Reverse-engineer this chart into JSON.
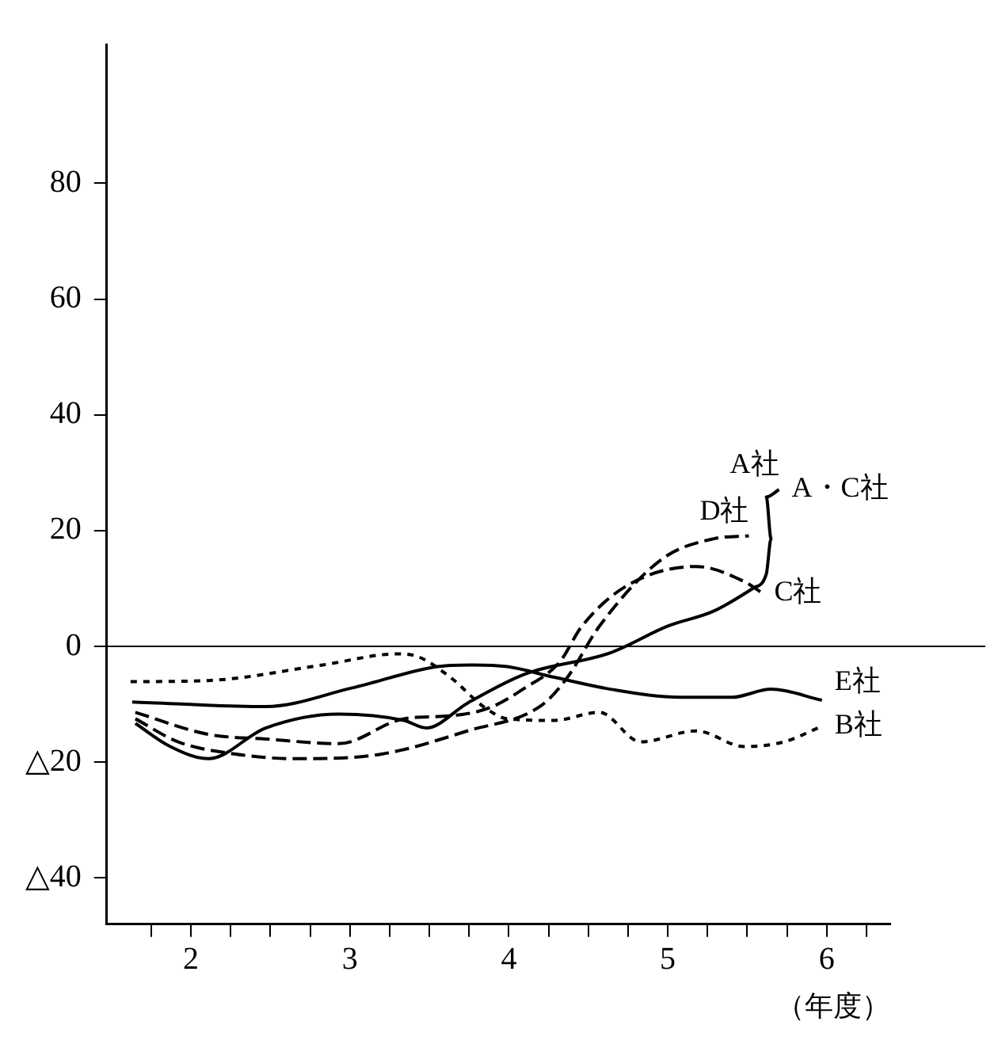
{
  "chart_data": {
    "type": "line",
    "xlabel": "（年度）",
    "legend": false,
    "grid": false,
    "xlim": [
      1.47,
      6.4
    ],
    "xticks": [
      {
        "value": 1.75,
        "label": null
      },
      {
        "value": 2,
        "label": "2"
      },
      {
        "value": 2.25,
        "label": null
      },
      {
        "value": 2.5,
        "label": null
      },
      {
        "value": 2.75,
        "label": null
      },
      {
        "value": 3,
        "label": "3"
      },
      {
        "value": 3.25,
        "label": null
      },
      {
        "value": 3.5,
        "label": null
      },
      {
        "value": 3.75,
        "label": null
      },
      {
        "value": 4,
        "label": "4"
      },
      {
        "value": 4.25,
        "label": null
      },
      {
        "value": 4.5,
        "label": null
      },
      {
        "value": 4.75,
        "label": null
      },
      {
        "value": 5,
        "label": "5"
      },
      {
        "value": 5.25,
        "label": null
      },
      {
        "value": 5.5,
        "label": null
      },
      {
        "value": 5.75,
        "label": null
      },
      {
        "value": 6,
        "label": "6"
      },
      {
        "value": 6.25,
        "label": null
      }
    ],
    "ylim": [
      -48,
      104
    ],
    "yticks": [
      {
        "value": -40,
        "label": "△40"
      },
      {
        "value": -20,
        "label": "△20"
      },
      0,
      20,
      40,
      60,
      80
    ],
    "ref_lines": [
      {
        "axis": "y",
        "value": 0
      }
    ],
    "annotations": [
      {
        "text": "A・C社",
        "x": 5.7,
        "y": 27.1
      }
    ],
    "series": [
      {
        "name": "A社",
        "color": "#000000",
        "line_style": "solid",
        "x": [
          1.65,
          1.87,
          2.11,
          2.47,
          2.93,
          3.34,
          3.48,
          3.74,
          4.1,
          4.64,
          5.0,
          5.29,
          5.54,
          5.62,
          5.65,
          5.62,
          5.7
        ],
        "values": [
          -13.3,
          -17.3,
          -19.4,
          -14.1,
          -11.7,
          -12.8,
          -14.1,
          -9.8,
          -4.8,
          -1.1,
          3.5,
          6.1,
          10.1,
          12.5,
          18.6,
          25.8,
          27.1
        ]
      },
      {
        "name": "B社",
        "color": "#000000",
        "line_style": "dotted",
        "x": [
          1.62,
          2.11,
          2.83,
          3.3,
          3.41,
          3.63,
          3.85,
          3.99,
          4.28,
          4.57,
          4.83,
          5.18,
          5.48,
          5.73,
          5.97
        ],
        "values": [
          -6.1,
          -5.9,
          -3.2,
          -1.3,
          -1.6,
          -5.3,
          -10.6,
          -12.5,
          -12.8,
          -11.4,
          -16.5,
          -14.6,
          -17.3,
          -16.5,
          -13.8
        ]
      },
      {
        "name": "C社",
        "color": "#000000",
        "line_style": "dashed",
        "x": [
          1.65,
          2.11,
          2.47,
          2.93,
          3.34,
          3.63,
          3.88,
          4.1,
          4.32,
          4.46,
          4.75,
          5.18,
          5.48,
          5.59
        ],
        "values": [
          -11.4,
          -15.2,
          -16.0,
          -16.8,
          -12.5,
          -12.0,
          -10.6,
          -7.2,
          -2.7,
          3.5,
          10.6,
          13.8,
          11.2,
          9.3
        ]
      },
      {
        "name": "D社",
        "color": "#000000",
        "line_style": "dashed",
        "x": [
          1.65,
          1.92,
          2.28,
          2.65,
          3.2,
          3.74,
          4.21,
          4.37,
          4.57,
          4.97,
          5.29,
          5.51
        ],
        "values": [
          -12.5,
          -16.5,
          -18.6,
          -19.4,
          -18.6,
          -14.6,
          -10.1,
          -5.3,
          3.5,
          15.2,
          18.6,
          19.1
        ]
      },
      {
        "name": "E社",
        "color": "#000000",
        "line_style": "solid",
        "x": [
          1.63,
          2.47,
          3.01,
          3.55,
          3.77,
          3.99,
          4.28,
          4.64,
          5.08,
          5.4,
          5.65,
          5.97
        ],
        "values": [
          -9.6,
          -10.4,
          -7.2,
          -3.5,
          -3.2,
          -3.5,
          -5.3,
          -7.4,
          -8.8,
          -8.8,
          -7.4,
          -9.3
        ]
      }
    ]
  }
}
